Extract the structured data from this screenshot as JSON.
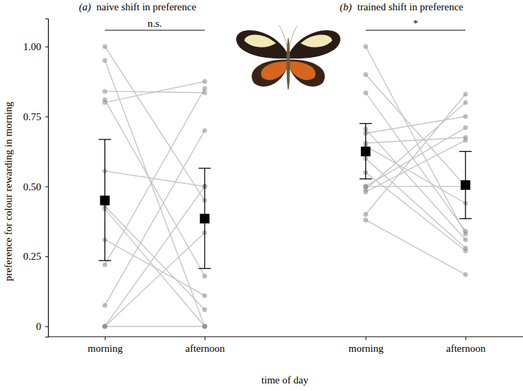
{
  "chart_data": {
    "type": "paired_dot",
    "y_label": "preference for colour rewarding in morning",
    "x_label": "time of day",
    "ylim": [
      -0.037,
      1.1
    ],
    "yticks": [
      0,
      {
        "value": 0.25,
        "label": "0.25"
      },
      {
        "value": 0.5,
        "label": "0.50"
      },
      {
        "value": 0.75,
        "label": "0.75"
      },
      {
        "value": 1,
        "label": "1.00"
      }
    ],
    "panels": [
      {
        "tag": "(a)",
        "title": "naive shift in preference",
        "significance": "n.s.",
        "categories": [
          "morning",
          "afternoon"
        ],
        "individuals": [
          [
            1.0,
            0.45
          ],
          [
            0.95,
            0.0
          ],
          [
            0.84,
            0.835
          ],
          [
            0.81,
            0.18
          ],
          [
            0.8,
            0.875
          ],
          [
            0.555,
            0.5
          ],
          [
            0.43,
            0.06
          ],
          [
            0.42,
            0.0
          ],
          [
            0.31,
            0.11
          ],
          [
            0.22,
            0.85
          ],
          [
            0.075,
            0.7
          ],
          [
            0.0,
            0.5
          ],
          [
            0.0,
            0.335
          ],
          [
            0.0,
            0.0
          ]
        ],
        "mean": [
          0.45,
          0.385
        ],
        "ci_lower": [
          0.235,
          0.207
        ],
        "ci_upper": [
          0.668,
          0.565
        ]
      },
      {
        "tag": "(b)",
        "title": "trained shift in preference",
        "significance": "*",
        "categories": [
          "morning",
          "afternoon"
        ],
        "individuals": [
          [
            1.0,
            0.33
          ],
          [
            0.9,
            0.5
          ],
          [
            0.835,
            0.34
          ],
          [
            0.705,
            0.31
          ],
          [
            0.69,
            0.75
          ],
          [
            0.655,
            0.675
          ],
          [
            0.645,
            0.44
          ],
          [
            0.6,
            0.28
          ],
          [
            0.55,
            0.27
          ],
          [
            0.5,
            0.5
          ],
          [
            0.5,
            0.71
          ],
          [
            0.49,
            0.8
          ],
          [
            0.48,
            0.665
          ],
          [
            0.4,
            0.83
          ],
          [
            0.38,
            0.185
          ]
        ],
        "mean": [
          0.625,
          0.505
        ],
        "ci_lower": [
          0.527,
          0.385
        ],
        "ci_upper": [
          0.725,
          0.625
        ]
      }
    ]
  }
}
